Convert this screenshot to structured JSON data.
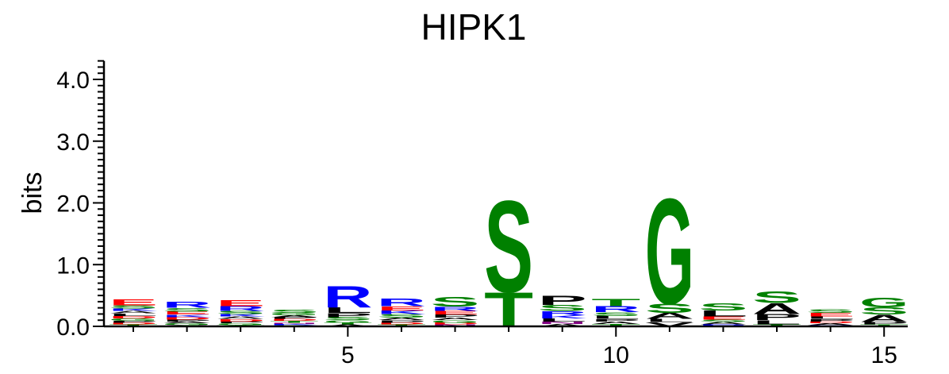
{
  "chart_data": {
    "type": "sequence-logo",
    "title": "HIPK1",
    "ylabel": "bits",
    "xlabel": "",
    "ylim": [
      0,
      4.3
    ],
    "y_ticks": [
      {
        "value": 0,
        "label": "0.0"
      },
      {
        "value": 1,
        "label": "1.0"
      },
      {
        "value": 2,
        "label": "2.0"
      },
      {
        "value": 3,
        "label": "3.0"
      },
      {
        "value": 4,
        "label": "4.0"
      }
    ],
    "x_ticks": [
      {
        "value": 5,
        "label": "5"
      },
      {
        "value": 10,
        "label": "10"
      },
      {
        "value": 15,
        "label": "15"
      }
    ],
    "positions": [
      1,
      2,
      3,
      4,
      5,
      6,
      7,
      8,
      9,
      10,
      11,
      12,
      13,
      14,
      15
    ],
    "colors": {
      "S": "#008000",
      "T": "#008000",
      "G": "#008000",
      "Q": "#008000",
      "Y": "#008000",
      "C": "#008000",
      "N": "#800080",
      "R": "#0000ff",
      "K": "#0000ff",
      "H": "#0000ff",
      "E": "#ff0000",
      "D": "#ff0000",
      "P": "#000000",
      "L": "#000000",
      "A": "#000000",
      "V": "#000000",
      "I": "#000000",
      "M": "#000000",
      "F": "#000000",
      "W": "#000000"
    },
    "columns": [
      {
        "position": 1,
        "letters": [
          {
            "aa": "T",
            "h": 0.03
          },
          {
            "aa": "D",
            "h": 0.03
          },
          {
            "aa": "P",
            "h": 0.03
          },
          {
            "aa": "G",
            "h": 0.04
          },
          {
            "aa": "D",
            "h": 0.04
          },
          {
            "aa": "L",
            "h": 0.04
          },
          {
            "aa": "A",
            "h": 0.04
          },
          {
            "aa": "K",
            "h": 0.04
          },
          {
            "aa": "S",
            "h": 0.05
          },
          {
            "aa": "E",
            "h": 0.1
          }
        ]
      },
      {
        "position": 2,
        "letters": [
          {
            "aa": "N",
            "h": 0.02
          },
          {
            "aa": "G",
            "h": 0.03
          },
          {
            "aa": "A",
            "h": 0.03
          },
          {
            "aa": "P",
            "h": 0.03
          },
          {
            "aa": "D",
            "h": 0.04
          },
          {
            "aa": "K",
            "h": 0.04
          },
          {
            "aa": "E",
            "h": 0.05
          },
          {
            "aa": "S",
            "h": 0.06
          },
          {
            "aa": "R",
            "h": 0.1
          }
        ]
      },
      {
        "position": 3,
        "letters": [
          {
            "aa": "T",
            "h": 0.02
          },
          {
            "aa": "G",
            "h": 0.03
          },
          {
            "aa": "P",
            "h": 0.03
          },
          {
            "aa": "D",
            "h": 0.04
          },
          {
            "aa": "A",
            "h": 0.04
          },
          {
            "aa": "K",
            "h": 0.04
          },
          {
            "aa": "S",
            "h": 0.05
          },
          {
            "aa": "R",
            "h": 0.08
          },
          {
            "aa": "E",
            "h": 0.1
          }
        ]
      },
      {
        "position": 4,
        "letters": [
          {
            "aa": "Q",
            "h": 0.02
          },
          {
            "aa": "K",
            "h": 0.02
          },
          {
            "aa": "N",
            "h": 0.02
          },
          {
            "aa": "T",
            "h": 0.03
          },
          {
            "aa": "D",
            "h": 0.03
          },
          {
            "aa": "P",
            "h": 0.03
          },
          {
            "aa": "A",
            "h": 0.03
          },
          {
            "aa": "G",
            "h": 0.04
          },
          {
            "aa": "S",
            "h": 0.05
          }
        ]
      },
      {
        "position": 5,
        "letters": [
          {
            "aa": "A",
            "h": 0.03
          },
          {
            "aa": "T",
            "h": 0.03
          },
          {
            "aa": "G",
            "h": 0.04
          },
          {
            "aa": "S",
            "h": 0.05
          },
          {
            "aa": "P",
            "h": 0.07
          },
          {
            "aa": "L",
            "h": 0.09
          },
          {
            "aa": "R",
            "h": 0.36
          }
        ]
      },
      {
        "position": 6,
        "letters": [
          {
            "aa": "T",
            "h": 0.03
          },
          {
            "aa": "D",
            "h": 0.03
          },
          {
            "aa": "P",
            "h": 0.04
          },
          {
            "aa": "A",
            "h": 0.04
          },
          {
            "aa": "S",
            "h": 0.06
          },
          {
            "aa": "K",
            "h": 0.06
          },
          {
            "aa": "E",
            "h": 0.07
          },
          {
            "aa": "R",
            "h": 0.13
          }
        ]
      },
      {
        "position": 7,
        "letters": [
          {
            "aa": "N",
            "h": 0.03
          },
          {
            "aa": "D",
            "h": 0.03
          },
          {
            "aa": "G",
            "h": 0.04
          },
          {
            "aa": "A",
            "h": 0.04
          },
          {
            "aa": "P",
            "h": 0.05
          },
          {
            "aa": "E",
            "h": 0.06
          },
          {
            "aa": "R",
            "h": 0.07
          },
          {
            "aa": "S",
            "h": 0.16
          }
        ]
      },
      {
        "position": 8,
        "letters": [
          {
            "aa": "T",
            "h": 0.56
          },
          {
            "aa": "S",
            "h": 1.52
          }
        ]
      },
      {
        "position": 9,
        "letters": [
          {
            "aa": "A",
            "h": 0.04
          },
          {
            "aa": "N",
            "h": 0.04
          },
          {
            "aa": "L",
            "h": 0.05
          },
          {
            "aa": "K",
            "h": 0.05
          },
          {
            "aa": "R",
            "h": 0.07
          },
          {
            "aa": "S",
            "h": 0.1
          },
          {
            "aa": "P",
            "h": 0.15
          }
        ]
      },
      {
        "position": 10,
        "letters": [
          {
            "aa": "T",
            "h": 0.04
          },
          {
            "aa": "A",
            "h": 0.04
          },
          {
            "aa": "P",
            "h": 0.04
          },
          {
            "aa": "L",
            "h": 0.05
          },
          {
            "aa": "S",
            "h": 0.06
          },
          {
            "aa": "R",
            "h": 0.1
          },
          {
            "aa": "T",
            "h": 0.12
          }
        ]
      },
      {
        "position": 11,
        "letters": [
          {
            "aa": "V",
            "h": 0.07
          },
          {
            "aa": "L",
            "h": 0.05
          },
          {
            "aa": "A",
            "h": 0.1
          },
          {
            "aa": "S",
            "h": 0.15
          },
          {
            "aa": "G",
            "h": 1.75
          }
        ]
      },
      {
        "position": 12,
        "letters": [
          {
            "aa": "R",
            "h": 0.03
          },
          {
            "aa": "A",
            "h": 0.04
          },
          {
            "aa": "S",
            "h": 0.04
          },
          {
            "aa": "E",
            "h": 0.05
          },
          {
            "aa": "L",
            "h": 0.1
          },
          {
            "aa": "S",
            "h": 0.12
          }
        ]
      },
      {
        "position": 13,
        "letters": [
          {
            "aa": "T",
            "h": 0.03
          },
          {
            "aa": "L",
            "h": 0.07
          },
          {
            "aa": "P",
            "h": 0.1
          },
          {
            "aa": "A",
            "h": 0.18
          },
          {
            "aa": "S",
            "h": 0.2
          }
        ]
      },
      {
        "position": 14,
        "letters": [
          {
            "aa": "R",
            "h": 0.02
          },
          {
            "aa": "A",
            "h": 0.03
          },
          {
            "aa": "D",
            "h": 0.03
          },
          {
            "aa": "P",
            "h": 0.04
          },
          {
            "aa": "L",
            "h": 0.04
          },
          {
            "aa": "E",
            "h": 0.06
          },
          {
            "aa": "S",
            "h": 0.06
          }
        ]
      },
      {
        "position": 15,
        "letters": [
          {
            "aa": "T",
            "h": 0.03
          },
          {
            "aa": "P",
            "h": 0.04
          },
          {
            "aa": "A",
            "h": 0.12
          },
          {
            "aa": "S",
            "h": 0.12
          },
          {
            "aa": "G",
            "h": 0.16
          }
        ]
      }
    ]
  }
}
